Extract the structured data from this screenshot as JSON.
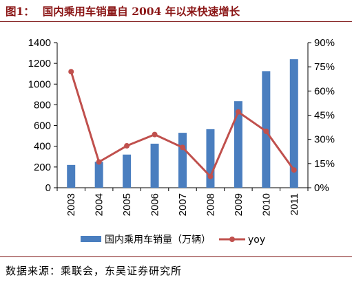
{
  "figure": {
    "label": "图1：",
    "title": "国内乘用车销量自 2004 年以来快速增长",
    "source": "数据来源：乘联会，东吴证券研究所"
  },
  "colors": {
    "title": "#8b1616",
    "bar": "#4a7ebf",
    "line": "#c0504d"
  },
  "chart_data": {
    "type": "bar+line",
    "categories": [
      "2003",
      "2004",
      "2005",
      "2006",
      "2007",
      "2008",
      "2009",
      "2010",
      "2011"
    ],
    "series": [
      {
        "name": "国内乘用车销量（万辆）",
        "type": "bar",
        "axis": "left",
        "values": [
          220,
          250,
          320,
          425,
          530,
          565,
          835,
          1125,
          1240
        ]
      },
      {
        "name": "yoy",
        "type": "line",
        "axis": "right",
        "values": [
          72,
          16,
          26,
          33,
          25,
          7,
          47,
          35,
          11
        ]
      }
    ],
    "y_left": {
      "ylim": [
        0,
        1400
      ],
      "ticks": [
        "0",
        "200",
        "400",
        "600",
        "800",
        "1000",
        "1200",
        "1400"
      ]
    },
    "y_right": {
      "ylim": [
        0,
        90
      ],
      "ticks": [
        "0%",
        "15%",
        "30%",
        "45%",
        "60%",
        "75%",
        "90%"
      ]
    },
    "grid": false,
    "legend_position": "bottom"
  }
}
